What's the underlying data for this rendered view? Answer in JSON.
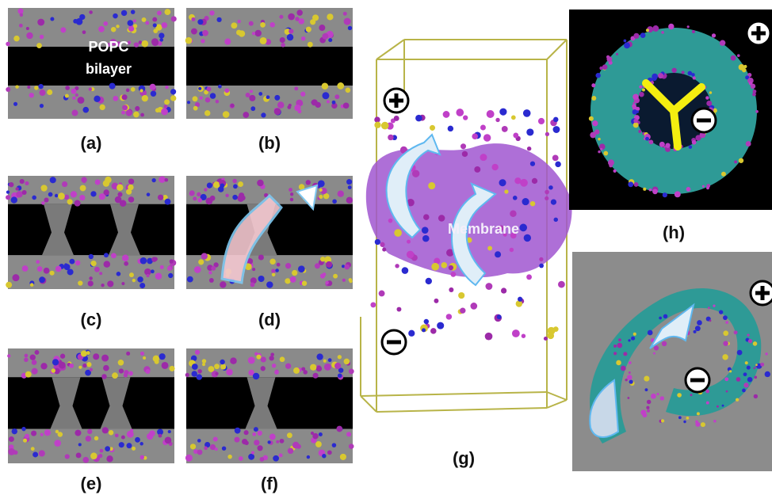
{
  "panels": [
    {
      "label": "(a)"
    },
    {
      "label": "(b)"
    },
    {
      "label": "(c)"
    },
    {
      "label": "(d)"
    },
    {
      "label": "(e)"
    },
    {
      "label": "(f)"
    },
    {
      "label": "(g)"
    },
    {
      "label": "(h)"
    }
  ],
  "annotations": {
    "popc": [
      "POPC",
      "bilayer"
    ],
    "membrane": "Membrane"
  }
}
